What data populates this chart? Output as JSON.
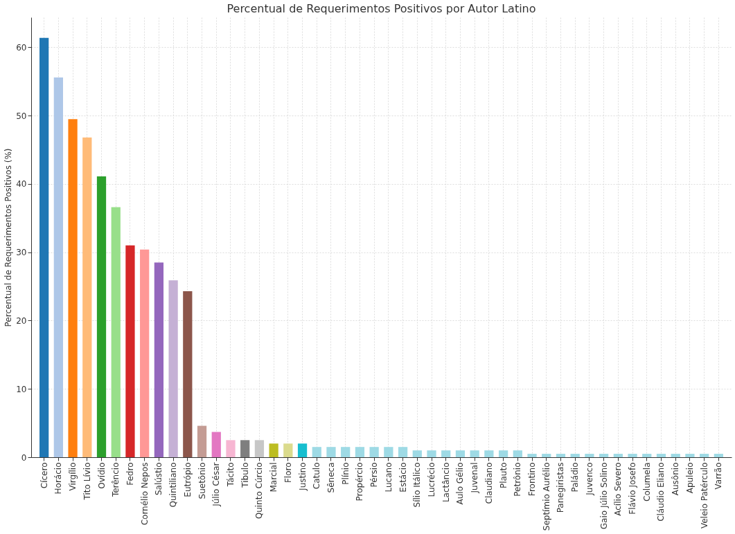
{
  "chart_data": {
    "type": "bar",
    "title": "Percentual de Requerimentos Positivos por Autor Latino",
    "ylabel": "Percentual de Requerimentos Positivos (%)",
    "categories": [
      "Cícero",
      "Horácio",
      "Virgílio",
      "Tito Lívio",
      "Ovídio",
      "Terêncio",
      "Fedro",
      "Cornélio Nepos",
      "Salústio",
      "Quintiliano",
      "Eutrópio",
      "Suetônio",
      "Júlio César",
      "Tácito",
      "Tibulo",
      "Quinto Cúrcio",
      "Marcial",
      "Floro",
      "Justino",
      "Catulo",
      "Sêneca",
      "Plínio",
      "Propércio",
      "Pérsio",
      "Lucano",
      "Estácio",
      "Sílio Itálico",
      "Lucrécio",
      "Lactâncio",
      "Aulo Gélio",
      "Juvenal",
      "Claudiano",
      "Plauto",
      "Petrônio",
      "Frontino",
      "Septímio Aurélio",
      "Panegiristas",
      "Paládio",
      "Juvenco",
      "Gaio Júlio Solino",
      "Acílio Severo",
      "Flávio Josefo",
      "Columela",
      "Cláudio Eliano",
      "Ausônio",
      "Apuleio",
      "Veleio Patérculo",
      "Varrão"
    ],
    "values": [
      61.4,
      55.6,
      49.5,
      46.8,
      41.1,
      36.6,
      31.0,
      30.4,
      28.5,
      25.9,
      24.3,
      4.6,
      3.7,
      2.5,
      2.5,
      2.5,
      2.0,
      2.0,
      2.0,
      1.5,
      1.5,
      1.5,
      1.5,
      1.5,
      1.5,
      1.5,
      1.0,
      1.0,
      1.0,
      1.0,
      1.0,
      1.0,
      1.0,
      1.0,
      0.5,
      0.5,
      0.5,
      0.5,
      0.5,
      0.5,
      0.5,
      0.5,
      0.5,
      0.5,
      0.5,
      0.5,
      0.5,
      0.5
    ],
    "colors": [
      "#1f77b4",
      "#aec7e8",
      "#ff7f0e",
      "#ffbb78",
      "#2ca02c",
      "#98df8a",
      "#d62728",
      "#ff9896",
      "#9467bd",
      "#c5b0d5",
      "#8c564b",
      "#c49c94",
      "#e377c2",
      "#f7b6d2",
      "#7f7f7f",
      "#c7c7c7",
      "#bcbd22",
      "#dbdb8d",
      "#17becf",
      "#9edae5",
      "#9edae5",
      "#9edae5",
      "#9edae5",
      "#9edae5",
      "#9edae5",
      "#9edae5",
      "#9edae5",
      "#9edae5",
      "#9edae5",
      "#9edae5",
      "#9edae5",
      "#9edae5",
      "#9edae5",
      "#9edae5",
      "#9edae5",
      "#9edae5",
      "#9edae5",
      "#9edae5",
      "#9edae5",
      "#9edae5",
      "#9edae5",
      "#9edae5",
      "#9edae5",
      "#9edae5",
      "#9edae5",
      "#9edae5",
      "#9edae5",
      "#9edae5"
    ],
    "ylim": [
      0,
      64.4
    ],
    "yticks": [
      0,
      10,
      20,
      30,
      40,
      50,
      60
    ],
    "grid": true
  }
}
